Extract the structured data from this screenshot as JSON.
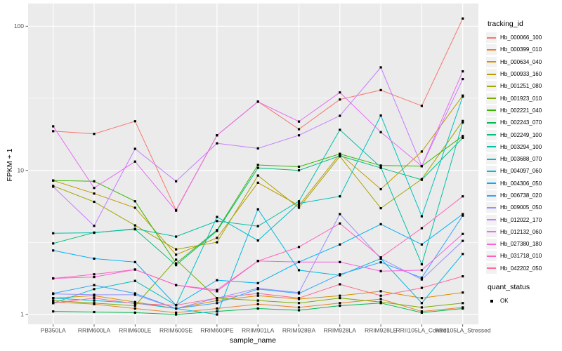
{
  "panel": {
    "bg": "#EBEBEB",
    "grid_color": "#FFFFFF",
    "tick_color": "#333333",
    "tick_label_color": "#4D4D4D"
  },
  "chart_data": {
    "type": "line",
    "title": "",
    "xlabel": "sample_name",
    "ylabel": "FPKM + 1",
    "y_scale": "log10",
    "y_ticks": [
      1,
      10,
      100
    ],
    "y_minor_ticks": [
      3.162,
      31.623
    ],
    "ylim": [
      0.86,
      143
    ],
    "grid": true,
    "legend_position": "right",
    "legend_title": "tracking_id",
    "point_shape": "square",
    "point_color": "#000000",
    "categories": [
      "PB350LA",
      "RRIM600LA",
      "RRIM600LE",
      "RRIM600SE",
      "RRIM600PE",
      "RRIM901LA",
      "RRIM928BA",
      "RRIM928LA",
      "RRIM928LE",
      "RRII105LA_Control",
      "RRII105LA_Stressed"
    ],
    "series": [
      {
        "name": "Hb_000066_100",
        "color": "#F8766D",
        "values": [
          18.7,
          17.9,
          21.9,
          5.3,
          17.5,
          30,
          19.3,
          31,
          36,
          28,
          113
        ]
      },
      {
        "name": "Hb_000399_010",
        "color": "#EA8331",
        "values": [
          1.22,
          1.18,
          1.1,
          1.03,
          1.1,
          1.18,
          1.12,
          1.2,
          1.28,
          1.05,
          1.12
        ]
      },
      {
        "name": "Hb_000634_040",
        "color": "#D89000",
        "values": [
          1.3,
          1.35,
          1.22,
          1.1,
          1.25,
          1.35,
          1.28,
          1.35,
          1.45,
          1.3,
          1.42
        ]
      },
      {
        "name": "Hb_000933_160",
        "color": "#C09B00",
        "values": [
          8.5,
          6.9,
          5.5,
          2.6,
          3.4,
          8.2,
          5.7,
          13.0,
          7.4,
          13.5,
          33
        ]
      },
      {
        "name": "Hb_001251_080",
        "color": "#A3A500",
        "values": [
          7.8,
          6.05,
          4.15,
          2.83,
          3.17,
          9.2,
          5.5,
          12.5,
          5.46,
          8.7,
          22
        ]
      },
      {
        "name": "Hb_001923_010",
        "color": "#7CAE00",
        "values": [
          1.25,
          1.2,
          1.15,
          2.4,
          1.3,
          1.25,
          1.2,
          1.3,
          1.22,
          1.12,
          1.2
        ]
      },
      {
        "name": "Hb_002221_040",
        "color": "#39B600",
        "values": [
          8.5,
          8.4,
          6.1,
          2.26,
          3.85,
          10.9,
          10.6,
          13.0,
          10.8,
          10.7,
          17.3
        ]
      },
      {
        "name": "Hb_002243_070",
        "color": "#00BB4E",
        "values": [
          1.05,
          1.04,
          1.03,
          1.0,
          1.05,
          1.1,
          1.07,
          1.15,
          1.2,
          1.03,
          1.1
        ]
      },
      {
        "name": "Hb_002249_100",
        "color": "#00BF7D",
        "values": [
          3.11,
          3.7,
          3.9,
          2.2,
          3.8,
          10.4,
          10.0,
          12.6,
          10.4,
          8.6,
          16.8
        ]
      },
      {
        "name": "Hb_003294_100",
        "color": "#00C1A3",
        "values": [
          3.66,
          3.69,
          3.93,
          3.47,
          4.45,
          4.1,
          6.1,
          19.1,
          10.5,
          2.23,
          21.5
        ]
      },
      {
        "name": "Hb_003688_070",
        "color": "#00BFC4",
        "values": [
          1.2,
          1.5,
          1.71,
          1.16,
          4.75,
          3.26,
          5.9,
          6.6,
          24,
          4.8,
          32.5
        ]
      },
      {
        "name": "Hb_004097_060",
        "color": "#00BAE0",
        "values": [
          1.3,
          1.25,
          1.2,
          1.1,
          1.0,
          5.37,
          2.03,
          1.87,
          2.44,
          1.2,
          2.63
        ]
      },
      {
        "name": "Hb_004306_050",
        "color": "#00B0F6",
        "values": [
          2.78,
          2.44,
          2.31,
          1.16,
          1.73,
          1.65,
          2.31,
          3.06,
          4.23,
          3.06,
          4.97
        ]
      },
      {
        "name": "Hb_006738_020",
        "color": "#35A2FF",
        "values": [
          1.4,
          1.6,
          1.4,
          1.1,
          1.2,
          1.5,
          1.4,
          1.9,
          2.3,
          1.8,
          4.85
        ]
      },
      {
        "name": "Hb_009005_050",
        "color": "#9590FF",
        "values": [
          1.39,
          1.37,
          1.37,
          1.1,
          1.3,
          1.52,
          1.42,
          4.97,
          2.44,
          1.75,
          3.24
        ]
      },
      {
        "name": "Hb_012022_170",
        "color": "#C77CFF",
        "values": [
          7.7,
          4.12,
          14.1,
          8.4,
          15.4,
          14.2,
          17.5,
          23.9,
          51.8,
          10.7,
          43
        ]
      },
      {
        "name": "Hb_012132_060",
        "color": "#E76BF3",
        "values": [
          20.2,
          7.55,
          11.5,
          5.25,
          17.5,
          29.9,
          21.8,
          34.7,
          18.4,
          10.7,
          48.6
        ]
      },
      {
        "name": "Hb_027380_180",
        "color": "#FA62DB",
        "values": [
          1.78,
          1.82,
          2.05,
          1.6,
          1.45,
          2.35,
          2.31,
          2.31,
          2.0,
          2.03,
          3.62
        ]
      },
      {
        "name": "Hb_031718_010",
        "color": "#FF62BC",
        "values": [
          1.78,
          1.9,
          2.05,
          1.6,
          1.48,
          2.35,
          2.94,
          4.28,
          2.49,
          3.97,
          6.6
        ]
      },
      {
        "name": "Hb_042202_050",
        "color": "#FF6A98",
        "values": [
          1.2,
          1.3,
          1.19,
          1.16,
          1.3,
          1.4,
          1.3,
          1.62,
          1.35,
          1.53,
          1.84
        ]
      }
    ],
    "legend2_title": "quant_status",
    "legend2_items": [
      {
        "label": "OK",
        "symbol": "black-square"
      }
    ]
  }
}
